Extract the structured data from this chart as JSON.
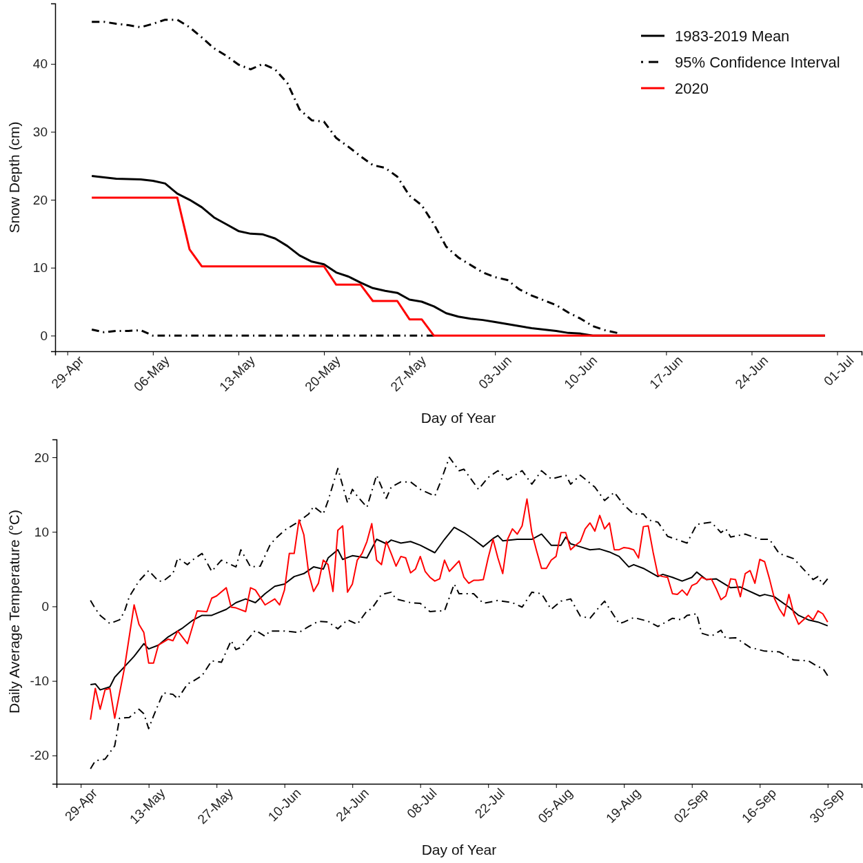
{
  "chart_data": [
    {
      "type": "line",
      "xlabel": "Day of Year",
      "ylabel": "Snow Depth (cm)",
      "legend": "top right",
      "xlim": [
        "--04-28",
        "--07-03"
      ],
      "ylim": [
        -2.3,
        48.9
      ],
      "yticks": [
        0,
        10,
        20,
        30,
        40
      ],
      "xticks": [
        {
          "value": "--04-29",
          "label": "29-Apr"
        },
        {
          "value": "--05-06",
          "label": "06-May"
        },
        {
          "value": "--05-13",
          "label": "13-May"
        },
        {
          "value": "--05-20",
          "label": "20-May"
        },
        {
          "value": "--05-27",
          "label": "27-May"
        },
        {
          "value": "--06-03",
          "label": "03-Jun"
        },
        {
          "value": "--06-10",
          "label": "10-Jun"
        },
        {
          "value": "--06-17",
          "label": "17-Jun"
        },
        {
          "value": "--06-24",
          "label": "24-Jun"
        },
        {
          "value": "--07-01",
          "label": "01-Jul"
        }
      ],
      "series": [
        {
          "name": "1983-2019 Mean",
          "color": "#000000",
          "line_style": "solid",
          "x": [
            "--05-01",
            "--05-03",
            "--05-05",
            "--05-06",
            "--05-07",
            "--05-08",
            "--05-09",
            "--05-10",
            "--05-11",
            "--05-12",
            "--05-13",
            "--05-14",
            "--05-15",
            "--05-16",
            "--05-17",
            "--05-18",
            "--05-19",
            "--05-20",
            "--05-21",
            "--05-22",
            "--05-23",
            "--05-24",
            "--05-25",
            "--05-26",
            "--05-27",
            "--05-28",
            "--05-29",
            "--05-30",
            "--05-31",
            "--06-01",
            "--06-02",
            "--06-03",
            "--06-04",
            "--06-05",
            "--06-06",
            "--06-07",
            "--06-08",
            "--06-09",
            "--06-10",
            "--06-11",
            "--06-30"
          ],
          "values": [
            23.5,
            23.1,
            23.0,
            22.8,
            22.4,
            20.9,
            20.0,
            18.9,
            17.4,
            16.4,
            15.4,
            15.0,
            14.9,
            14.3,
            13.2,
            11.8,
            10.9,
            10.5,
            9.3,
            8.7,
            7.8,
            7.0,
            6.6,
            6.3,
            5.3,
            5.0,
            4.3,
            3.3,
            2.8,
            2.5,
            2.3,
            2.0,
            1.7,
            1.4,
            1.1,
            0.9,
            0.7,
            0.4,
            0.3,
            0,
            0
          ]
        },
        {
          "name": "95% Confidence Interval",
          "color": "#000000",
          "line_style": "dashdot",
          "x": [
            "--05-01",
            "--05-02",
            "--05-03",
            "--05-04",
            "--05-05",
            "--05-06",
            "--05-07",
            "--05-08",
            "--05-09",
            "--05-10",
            "--05-11",
            "--05-12",
            "--05-13",
            "--05-14",
            "--05-15",
            "--05-16",
            "--05-17",
            "--05-18",
            "--05-19",
            "--05-20",
            "--05-21",
            "--05-22",
            "--05-23",
            "--05-24",
            "--05-25",
            "--05-26",
            "--05-27",
            "--05-28",
            "--05-29",
            "--05-30",
            "--05-31",
            "--06-01",
            "--06-02",
            "--06-03",
            "--06-04",
            "--06-05",
            "--06-06",
            "--06-07",
            "--06-08",
            "--06-09",
            "--06-10",
            "--06-11",
            "--06-12",
            "--06-13"
          ],
          "values": [
            46.2,
            46.2,
            45.9,
            45.7,
            45.4,
            45.9,
            46.5,
            46.5,
            45.4,
            43.9,
            42.3,
            41.2,
            39.9,
            39.2,
            40.0,
            39.2,
            37.2,
            33.3,
            31.7,
            31.5,
            29.1,
            27.8,
            26.4,
            25.1,
            24.7,
            23.4,
            20.6,
            19.2,
            16.4,
            13.1,
            11.5,
            10.4,
            9.3,
            8.6,
            8.2,
            6.8,
            5.9,
            5.2,
            4.5,
            3.4,
            2.5,
            1.4,
            0.8,
            0.4
          ]
        },
        {
          "color": "#000000",
          "line_style": "dashdot",
          "x": [
            "--05-01",
            "--05-02",
            "--05-03",
            "--05-04",
            "--05-05",
            "--05-06",
            "--05-29"
          ],
          "values": [
            0.9,
            0.5,
            0.7,
            0.7,
            0.8,
            0,
            0
          ]
        },
        {
          "name": "2020",
          "color": "#ff0000",
          "line_style": "solid",
          "x": [
            "--05-01",
            "--05-08",
            "--05-09",
            "--05-10",
            "--05-20",
            "--05-21",
            "--05-23",
            "--05-24",
            "--05-26",
            "--05-27",
            "--05-28",
            "--05-29",
            "--06-30"
          ],
          "values": [
            20.3,
            20.3,
            12.7,
            10.2,
            10.2,
            7.5,
            7.5,
            5.1,
            5.1,
            2.4,
            2.4,
            0,
            0
          ]
        }
      ]
    },
    {
      "type": "line",
      "xlabel": "Day of Year",
      "ylabel": "Daily Average Temperature (°C)",
      "xlim": [
        "--04-24",
        "--10-07"
      ],
      "ylim": [
        -23.8,
        22.4
      ],
      "yticks": [
        -20,
        -10,
        0,
        10,
        20
      ],
      "xticks": [
        {
          "value": "--04-29",
          "label": "29-Apr"
        },
        {
          "value": "--05-13",
          "label": "13-May"
        },
        {
          "value": "--05-27",
          "label": "27-May"
        },
        {
          "value": "--06-10",
          "label": "10-Jun"
        },
        {
          "value": "--06-24",
          "label": "24-Jun"
        },
        {
          "value": "--07-08",
          "label": "08-Jul"
        },
        {
          "value": "--07-22",
          "label": "22-Jul"
        },
        {
          "value": "--08-05",
          "label": "05-Aug"
        },
        {
          "value": "--08-19",
          "label": "19-Aug"
        },
        {
          "value": "--09-02",
          "label": "02-Sep"
        },
        {
          "value": "--09-16",
          "label": "16-Sep"
        },
        {
          "value": "--09-30",
          "label": "30-Sep"
        }
      ],
      "series": [
        {
          "color": "#000000",
          "line_style": "solid",
          "x": [
            "--05-01",
            "--05-02",
            "--05-03",
            "--05-05",
            "--05-06",
            "--05-08",
            "--05-10",
            "--05-12",
            "--05-13",
            "--05-15",
            "--05-17",
            "--05-20",
            "--05-22",
            "--05-24",
            "--05-26",
            "--05-29",
            "--05-31",
            "--06-02",
            "--06-04",
            "--06-06",
            "--06-08",
            "--06-10",
            "--06-12",
            "--06-14",
            "--06-16",
            "--06-18",
            "--06-19",
            "--06-21",
            "--06-22",
            "--06-24",
            "--06-27",
            "--06-29",
            "--07-01",
            "--07-02",
            "--07-04",
            "--07-06",
            "--07-08",
            "--07-11",
            "--07-13",
            "--07-15",
            "--07-17",
            "--07-19",
            "--07-21",
            "--07-23",
            "--07-24",
            "--07-25",
            "--07-28",
            "--07-31",
            "--08-02",
            "--08-04",
            "--08-06",
            "--08-07",
            "--08-08",
            "--08-10",
            "--08-12",
            "--08-14",
            "--08-16",
            "--08-18",
            "--08-20",
            "--08-21",
            "--08-23",
            "--08-26",
            "--08-27",
            "--08-29",
            "--08-31",
            "--09-02",
            "--09-03",
            "--09-05",
            "--09-07",
            "--09-10",
            "--09-12",
            "--09-16",
            "--09-17",
            "--09-19",
            "--09-22",
            "--09-24",
            "--09-26",
            "--09-28",
            "--09-30"
          ],
          "values": [
            -10.5,
            -10.4,
            -11.2,
            -10.8,
            -9.5,
            -8.1,
            -6.7,
            -5.0,
            -5.7,
            -5.2,
            -4.1,
            -2.9,
            -1.9,
            -1.2,
            -1.2,
            -0.4,
            0.5,
            1.0,
            0.5,
            1.7,
            2.7,
            3.0,
            4.0,
            4.4,
            5.3,
            5.0,
            6.5,
            7.6,
            6.3,
            6.8,
            6.5,
            9.0,
            8.4,
            8.9,
            8.5,
            8.7,
            8.2,
            7.2,
            9.0,
            10.6,
            9.9,
            9.0,
            8.0,
            9.1,
            9.5,
            8.8,
            9.0,
            9.0,
            9.7,
            8.2,
            8.2,
            9.3,
            8.4,
            8.0,
            7.6,
            7.7,
            7.3,
            6.7,
            5.3,
            5.6,
            5.1,
            4.0,
            4.3,
            3.9,
            3.4,
            3.9,
            4.6,
            3.6,
            3.7,
            2.5,
            2.6,
            1.4,
            1.6,
            1.3,
            -0.1,
            -1.2,
            -1.8,
            -2.1,
            -2.6
          ]
        },
        {
          "color": "#000000",
          "line_style": "dashdot",
          "x": [
            "--05-01",
            "--05-02",
            "--05-03",
            "--05-05",
            "--05-07",
            "--05-08",
            "--05-09",
            "--05-11",
            "--05-13",
            "--05-15",
            "--05-16",
            "--05-18",
            "--05-19",
            "--05-21",
            "--05-22",
            "--05-24",
            "--05-26",
            "--05-28",
            "--05-31",
            "--06-01",
            "--06-03",
            "--06-05",
            "--06-07",
            "--06-08",
            "--06-10",
            "--06-13",
            "--06-15",
            "--06-16",
            "--06-18",
            "--06-19",
            "--06-21",
            "--06-23",
            "--06-24",
            "--06-25",
            "--06-27",
            "--06-29",
            "--07-01",
            "--07-02",
            "--07-04",
            "--07-06",
            "--07-08",
            "--07-11",
            "--07-12",
            "--07-14",
            "--07-16",
            "--07-17",
            "--07-20",
            "--07-22",
            "--07-24",
            "--07-26",
            "--07-29",
            "--07-31",
            "--08-02",
            "--08-04",
            "--08-07",
            "--08-08",
            "--08-10",
            "--08-13",
            "--08-15",
            "--08-17",
            "--08-19",
            "--08-21",
            "--08-23",
            "--08-24",
            "--08-26",
            "--08-28",
            "--09-01",
            "--09-03",
            "--09-06",
            "--09-08",
            "--09-09",
            "--09-10",
            "--09-13",
            "--09-16",
            "--09-18",
            "--09-20",
            "--09-23",
            "--09-25",
            "--09-27",
            "--09-28",
            "--09-29",
            "--09-30"
          ],
          "values": [
            0.8,
            -0.3,
            -1.2,
            -2.3,
            -1.8,
            -0.7,
            1.3,
            3.4,
            4.8,
            3.4,
            3.4,
            4.4,
            6.5,
            5.6,
            6.2,
            7.1,
            4.7,
            6.2,
            5.3,
            7.6,
            5.3,
            5.4,
            8.2,
            9.0,
            10.2,
            11.4,
            12.4,
            13.4,
            12.4,
            14.2,
            18.5,
            13.9,
            15.7,
            14.8,
            13.3,
            17.6,
            14.5,
            16.0,
            16.7,
            16.7,
            15.7,
            14.8,
            16.4,
            20.0,
            18.2,
            18.4,
            15.7,
            17.3,
            18.2,
            17.0,
            18.2,
            16.4,
            18.2,
            17.1,
            17.6,
            16.4,
            17.6,
            16.0,
            14.2,
            15.3,
            13.6,
            12.4,
            12.4,
            11.6,
            11.3,
            9.4,
            8.5,
            11.0,
            11.3,
            9.9,
            10.4,
            9.3,
            9.7,
            9.0,
            9.0,
            7.1,
            6.4,
            5.0,
            3.6,
            4.0,
            2.9,
            3.7
          ]
        },
        {
          "color": "#000000",
          "line_style": "dashdot",
          "x": [
            "--05-01",
            "--05-02",
            "--05-04",
            "--05-06",
            "--05-07",
            "--05-09",
            "--05-11",
            "--05-12",
            "--05-13",
            "--05-14",
            "--05-16",
            "--05-18",
            "--05-19",
            "--05-21",
            "--05-22",
            "--05-24",
            "--05-26",
            "--05-28",
            "--05-30",
            "--05-31",
            "--06-01",
            "--06-03",
            "--06-04",
            "--06-06",
            "--06-07",
            "--06-10",
            "--06-13",
            "--06-15",
            "--06-17",
            "--06-19",
            "--06-21",
            "--06-23",
            "--06-25",
            "--06-27",
            "--06-28",
            "--06-30",
            "--07-02",
            "--07-03",
            "--07-06",
            "--07-08",
            "--07-10",
            "--07-12",
            "--07-13",
            "--07-15",
            "--07-16",
            "--07-19",
            "--07-21",
            "--07-24",
            "--07-27",
            "--07-29",
            "--07-31",
            "--08-02",
            "--08-04",
            "--08-06",
            "--08-08",
            "--08-10",
            "--08-12",
            "--08-14",
            "--08-15",
            "--08-18",
            "--08-19",
            "--08-21",
            "--08-24",
            "--08-26",
            "--08-29",
            "--08-31",
            "--09-01",
            "--09-03",
            "--09-04",
            "--09-06",
            "--09-08",
            "--09-09",
            "--09-11",
            "--09-14",
            "--09-17",
            "--09-20",
            "--09-23",
            "--09-26",
            "--09-28",
            "--09-29",
            "--09-30"
          ],
          "values": [
            -21.8,
            -20.7,
            -20.5,
            -18.7,
            -15.0,
            -14.9,
            -13.8,
            -14.4,
            -16.4,
            -14.7,
            -11.6,
            -11.8,
            -12.4,
            -10.4,
            -10.1,
            -9.3,
            -7.3,
            -7.5,
            -4.6,
            -5.8,
            -5.5,
            -4.0,
            -3.2,
            -4.0,
            -3.3,
            -3.3,
            -3.5,
            -2.7,
            -2.0,
            -2.1,
            -3.0,
            -1.8,
            -2.4,
            -0.6,
            -0.3,
            1.6,
            1.9,
            1.0,
            0.5,
            0.4,
            -0.7,
            -0.6,
            -0.6,
            3.0,
            1.7,
            1.7,
            0.4,
            0.8,
            0.5,
            -0.1,
            1.9,
            1.7,
            -0.4,
            0.7,
            1.0,
            -1.3,
            -1.6,
            0.0,
            0.7,
            -2.3,
            -2.1,
            -1.5,
            -2.0,
            -2.7,
            -1.6,
            -1.8,
            -1.2,
            -1.0,
            -3.6,
            -4.0,
            -3.2,
            -4.3,
            -4.2,
            -5.5,
            -6.0,
            -6.1,
            -7.2,
            -7.3,
            -8.1,
            -8.3,
            -9.3
          ]
        },
        {
          "color": "#ff0000",
          "line_style": "solid",
          "x": [
            "--05-01",
            "--05-02",
            "--05-03",
            "--05-04",
            "--05-05",
            "--05-06",
            "--05-08",
            "--05-10",
            "--05-11",
            "--05-12",
            "--05-13",
            "--05-14",
            "--05-15",
            "--05-17",
            "--05-18",
            "--05-19",
            "--05-21",
            "--05-23",
            "--05-25",
            "--05-26",
            "--05-27",
            "--05-29",
            "--05-30",
            "--05-31",
            "--06-02",
            "--06-03",
            "--06-04",
            "--06-06",
            "--06-08",
            "--06-09",
            "--06-10",
            "--06-11",
            "--06-12",
            "--06-13",
            "--06-14",
            "--06-15",
            "--06-16",
            "--06-17",
            "--06-18",
            "--06-19",
            "--06-20",
            "--06-21",
            "--06-22",
            "--06-23",
            "--06-24",
            "--06-25",
            "--06-26",
            "--06-27",
            "--06-28",
            "--06-29",
            "--06-30",
            "--07-01",
            "--07-02",
            "--07-03",
            "--07-04",
            "--07-05",
            "--07-06",
            "--07-07",
            "--07-08",
            "--07-09",
            "--07-10",
            "--07-11",
            "--07-12",
            "--07-13",
            "--07-14",
            "--07-15",
            "--07-16",
            "--07-17",
            "--07-18",
            "--07-19",
            "--07-20",
            "--07-21",
            "--07-22",
            "--07-23",
            "--07-24",
            "--07-25",
            "--07-26",
            "--07-27",
            "--07-28",
            "--07-29",
            "--07-30",
            "--07-31",
            "--08-01",
            "--08-02",
            "--08-03",
            "--08-04",
            "--08-05",
            "--08-06",
            "--08-07",
            "--08-08",
            "--08-09",
            "--08-10",
            "--08-11",
            "--08-12",
            "--08-13",
            "--08-14",
            "--08-15",
            "--08-16",
            "--08-17",
            "--08-18",
            "--08-19",
            "--08-20",
            "--08-21",
            "--08-22",
            "--08-23",
            "--08-24",
            "--08-25",
            "--08-26",
            "--08-27",
            "--08-28",
            "--08-29",
            "--08-30",
            "--08-31",
            "--09-01",
            "--09-02",
            "--09-03",
            "--09-04",
            "--09-05",
            "--09-06",
            "--09-07",
            "--09-08",
            "--09-09",
            "--09-10",
            "--09-11",
            "--09-12",
            "--09-13",
            "--09-14",
            "--09-15",
            "--09-16",
            "--09-17",
            "--09-18",
            "--09-19",
            "--09-20",
            "--09-21",
            "--09-22",
            "--09-23",
            "--09-24",
            "--09-25",
            "--09-26",
            "--09-27",
            "--09-28",
            "--09-29",
            "--09-30"
          ],
          "values": [
            -15.2,
            -11.0,
            -13.8,
            -11.2,
            -11.0,
            -15.0,
            -8.3,
            0.2,
            -2.4,
            -3.5,
            -7.6,
            -7.6,
            -5.2,
            -4.4,
            -4.6,
            -3.3,
            -5.0,
            -0.6,
            -0.7,
            1.1,
            1.4,
            2.5,
            -0.1,
            -0.2,
            -0.7,
            2.5,
            2.2,
            0.2,
            1.0,
            0.2,
            2.2,
            7.1,
            7.1,
            11.6,
            9.6,
            4.4,
            2.0,
            3.1,
            6.2,
            5.6,
            2.0,
            10.2,
            10.8,
            1.9,
            3.0,
            6.2,
            7.1,
            8.7,
            11.1,
            6.2,
            5.6,
            8.7,
            7.1,
            5.4,
            6.7,
            6.5,
            4.5,
            5.0,
            6.7,
            4.7,
            3.9,
            3.4,
            3.7,
            6.2,
            4.7,
            5.4,
            6.1,
            3.9,
            3.1,
            3.5,
            3.5,
            3.6,
            6.5,
            9.0,
            6.5,
            4.4,
            9.0,
            10.4,
            9.7,
            10.8,
            14.4,
            9.9,
            7.4,
            5.1,
            5.1,
            6.2,
            6.7,
            9.9,
            9.9,
            7.6,
            8.2,
            8.7,
            10.4,
            11.2,
            10.1,
            12.2,
            10.4,
            11.2,
            7.6,
            7.6,
            7.9,
            7.8,
            7.6,
            6.5,
            10.7,
            10.8,
            7.3,
            4.2,
            4.0,
            3.9,
            1.7,
            1.6,
            2.2,
            1.5,
            2.8,
            3.1,
            3.9,
            3.6,
            3.7,
            2.4,
            0.9,
            1.4,
            3.7,
            3.6,
            1.3,
            4.4,
            4.8,
            3.1,
            6.3,
            6.0,
            3.7,
            1.1,
            -0.3,
            -1.3,
            1.6,
            -0.9,
            -2.4,
            -1.8,
            -1.2,
            -1.8,
            -0.6,
            -1.0,
            -2.1
          ]
        }
      ]
    }
  ]
}
